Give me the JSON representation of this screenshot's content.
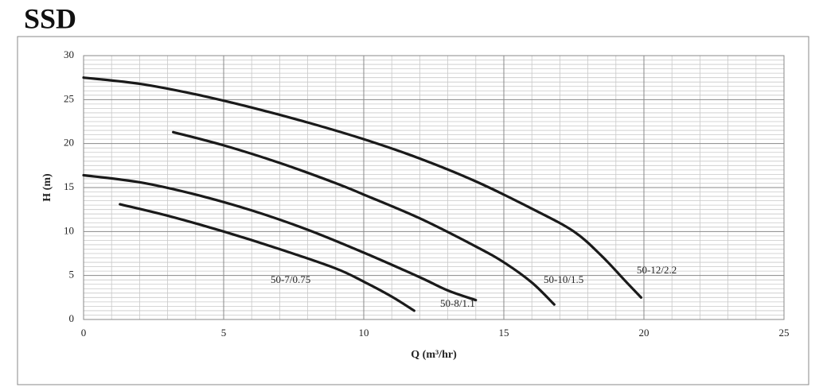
{
  "chart_data": {
    "type": "line",
    "title": "SSD",
    "xlabel": "Q (m³/hr)",
    "ylabel": "H (m)",
    "xlim": [
      0,
      25
    ],
    "xticks": [
      0,
      5,
      10,
      15,
      20,
      25
    ],
    "ylim": [
      0,
      30
    ],
    "yticks": [
      0,
      5,
      10,
      15,
      20,
      25,
      30
    ],
    "grid": true,
    "series": [
      {
        "name": "50-12/2.2",
        "color": "#1a1a1a",
        "x": [
          0,
          2,
          4,
          6,
          8,
          10,
          12,
          14,
          16,
          17.5,
          18.5,
          19.3,
          19.9
        ],
        "values": [
          27.5,
          26.8,
          25.6,
          24.1,
          22.4,
          20.5,
          18.3,
          15.7,
          12.6,
          10,
          7.2,
          4.5,
          2.5
        ]
      },
      {
        "name": "50-10/1.5",
        "color": "#1a1a1a",
        "x": [
          3.2,
          5,
          7,
          9,
          10,
          12,
          14,
          15,
          16,
          16.8
        ],
        "values": [
          21.3,
          19.8,
          17.8,
          15.5,
          14.2,
          11.5,
          8.3,
          6.5,
          4.2,
          1.7
        ]
      },
      {
        "name": "50-8/1.1",
        "color": "#1a1a1a",
        "x": [
          0,
          2,
          4,
          6,
          8,
          10,
          12,
          13,
          14
        ],
        "values": [
          16.4,
          15.6,
          14.2,
          12.4,
          10.2,
          7.6,
          4.8,
          3.3,
          2.2
        ]
      },
      {
        "name": "50-7/0.75",
        "color": "#1a1a1a",
        "x": [
          1.3,
          3,
          5,
          7,
          9,
          10,
          11,
          11.8
        ],
        "values": [
          13.1,
          11.8,
          10,
          8,
          5.8,
          4.3,
          2.6,
          1
        ]
      }
    ]
  }
}
